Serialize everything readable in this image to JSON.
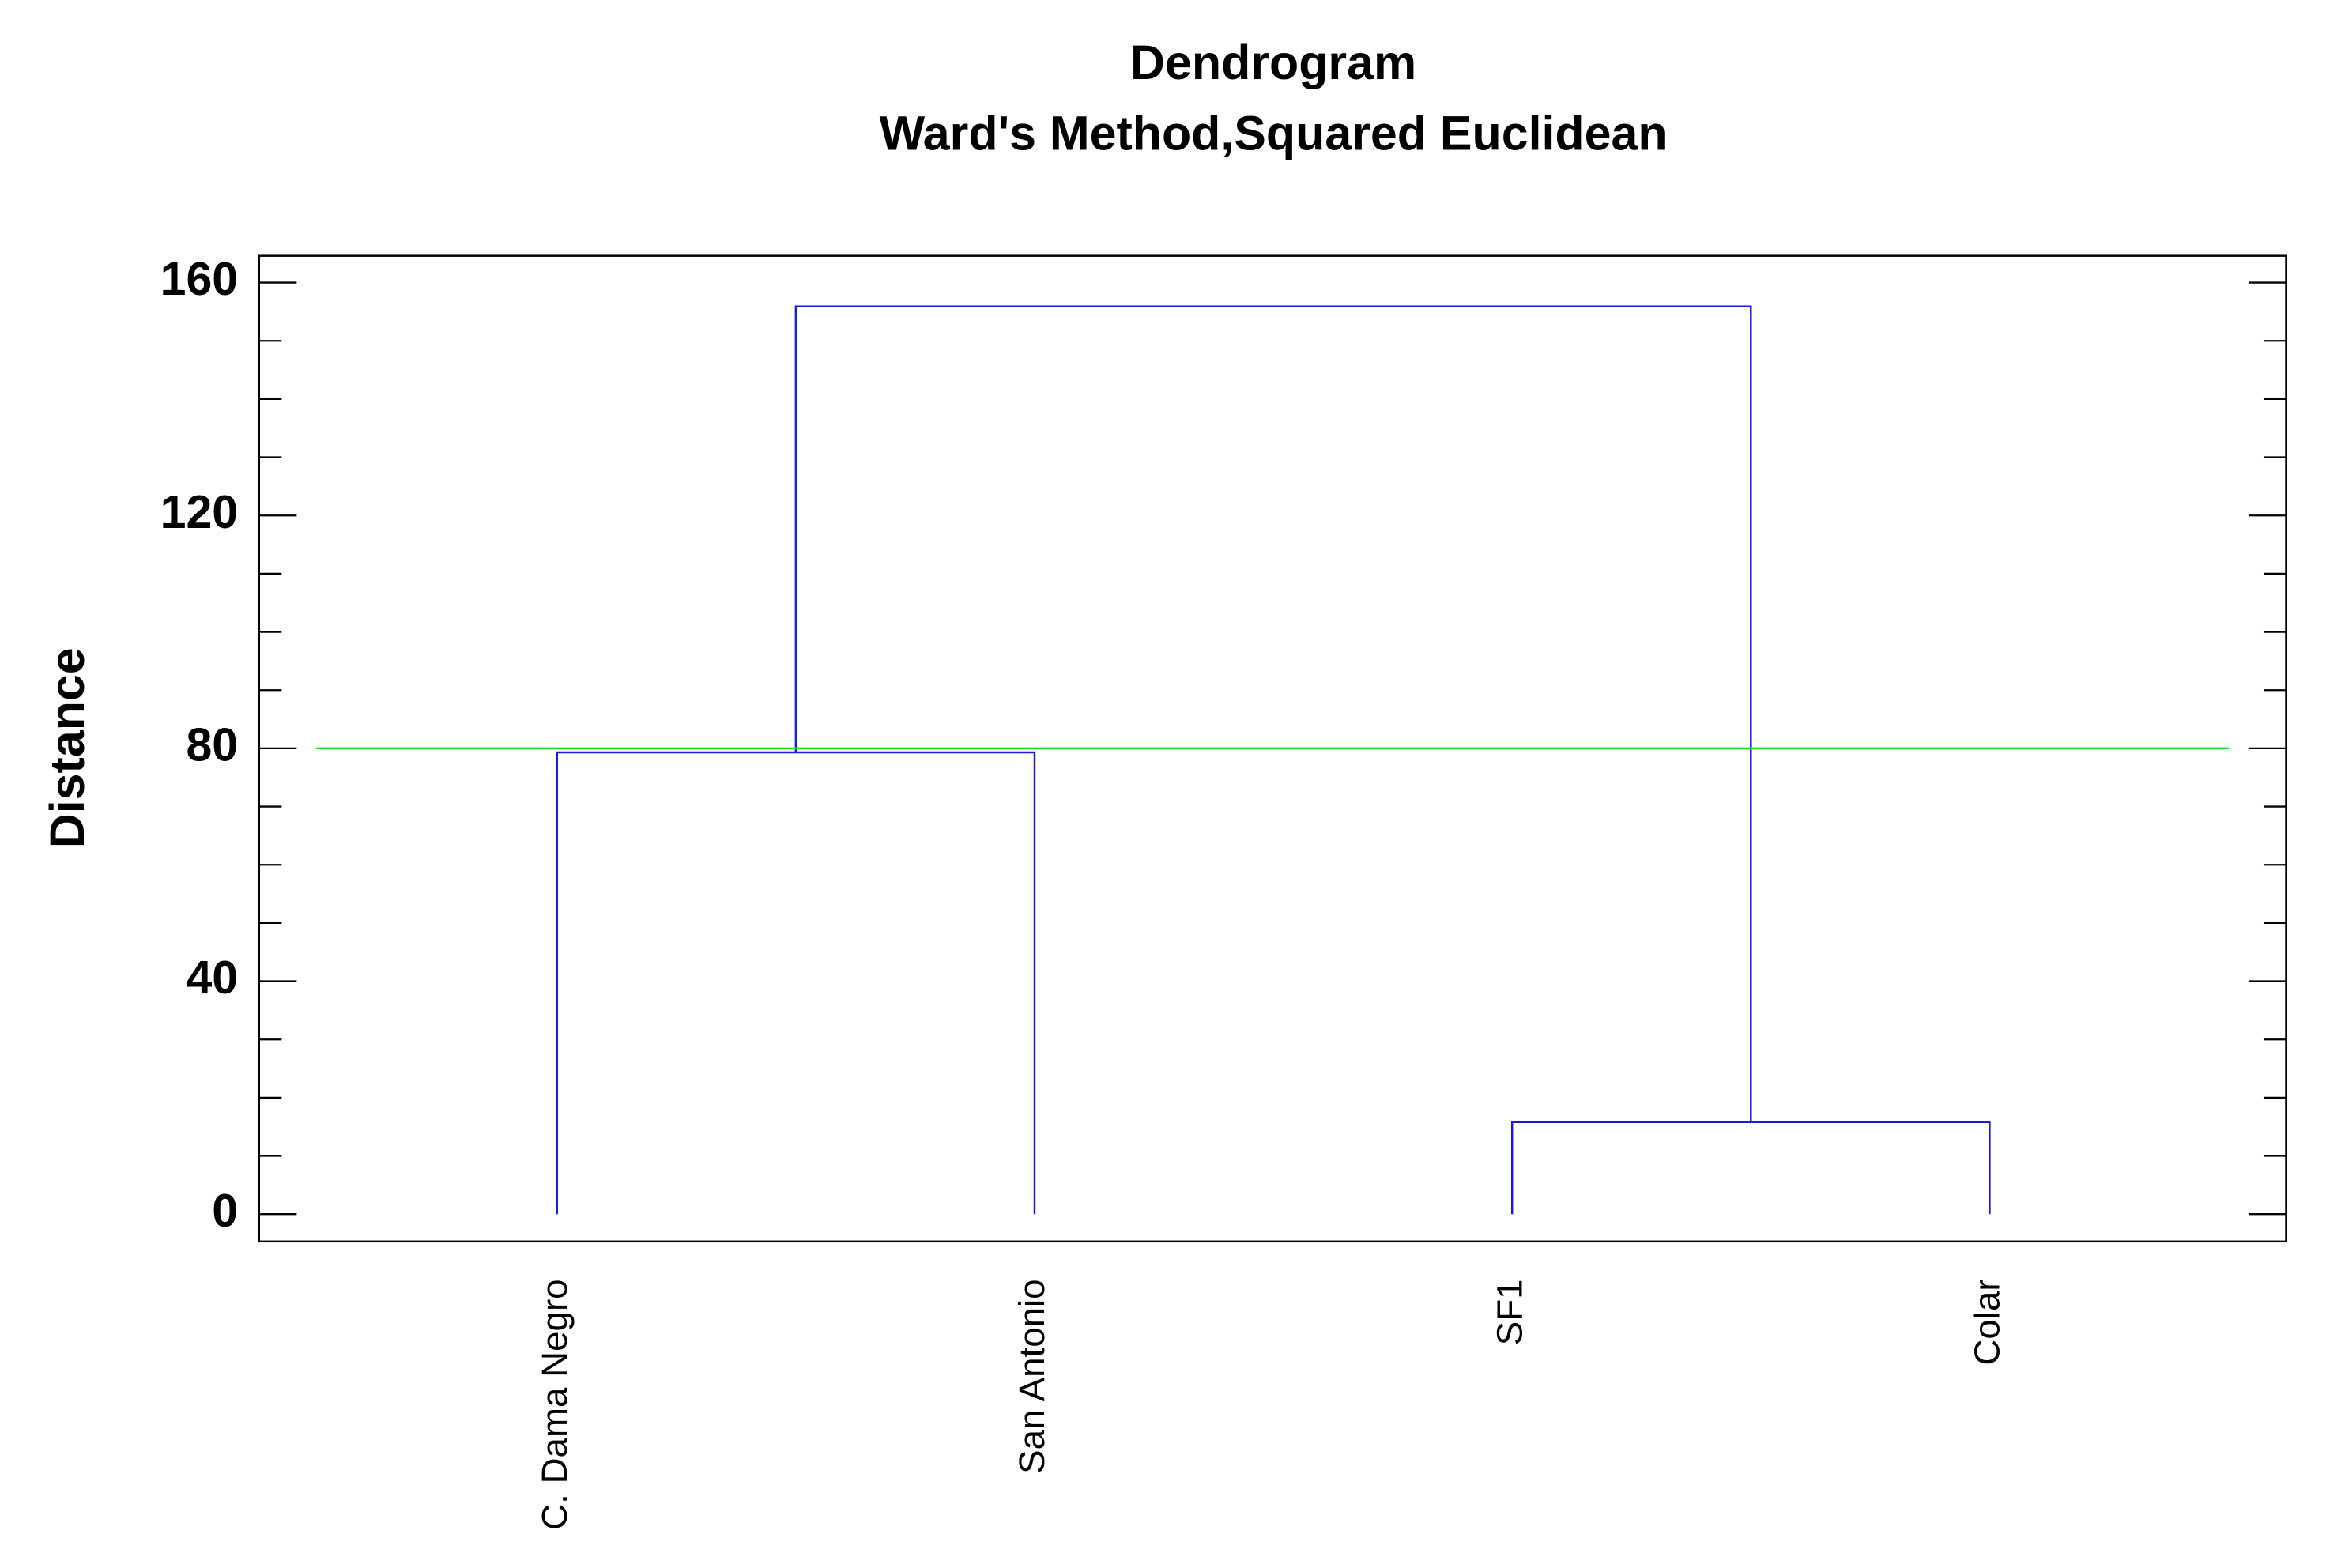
{
  "chart_data": {
    "type": "dendrogram",
    "title": "Dendrogram",
    "subtitle": "Ward's Method,Squared Euclidean",
    "y_label": "Distance",
    "leaves": [
      "C. Dama Negro",
      "San Antonio",
      "SF1",
      "Colar"
    ],
    "merges": [
      [
        0,
        1,
        79.3
      ],
      [
        2,
        3,
        15.8
      ],
      [
        4,
        5,
        155.9
      ]
    ],
    "cut_height": 80,
    "cut_color": "#22dd22",
    "color": "#1a1adf",
    "ylim": [
      -4.7,
      164.6
    ],
    "yticks": [
      0,
      40,
      80,
      120,
      160
    ],
    "yminor_ticks": [
      10,
      20,
      30,
      50,
      60,
      70,
      90,
      100,
      110,
      130,
      140,
      150
    ]
  }
}
